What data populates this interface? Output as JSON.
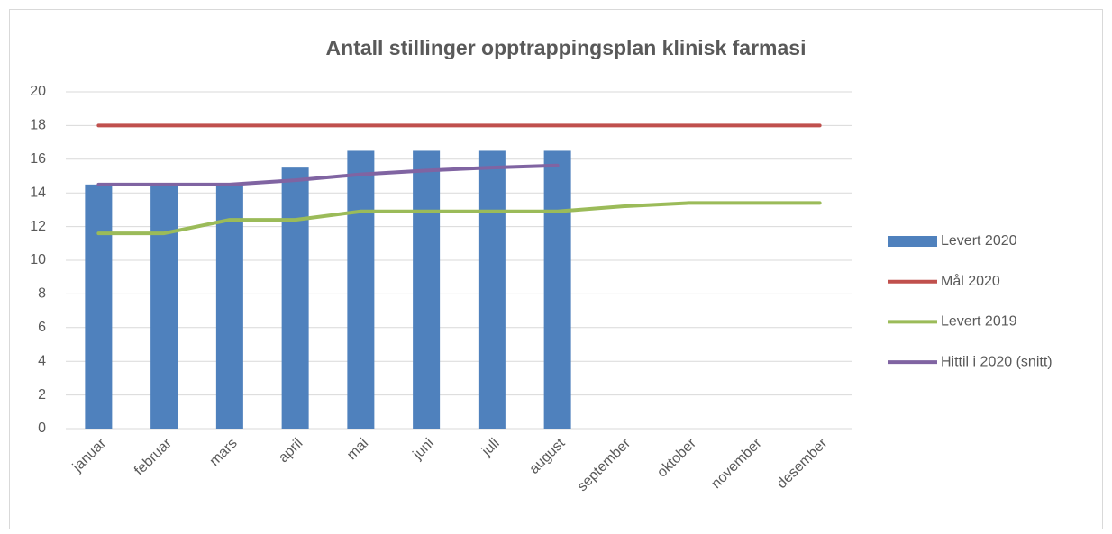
{
  "chart_data": {
    "type": "bar",
    "title": "Antall stillinger opptrappingsplan klinisk farmasi",
    "categories": [
      "januar",
      "februar",
      "mars",
      "april",
      "mai",
      "juni",
      "juli",
      "august",
      "september",
      "oktober",
      "november",
      "desember"
    ],
    "series": [
      {
        "name": "Levert 2020",
        "type": "bar",
        "color": "#4f81bd",
        "values": [
          14.5,
          14.5,
          14.5,
          15.5,
          16.5,
          16.5,
          16.5,
          16.5,
          null,
          null,
          null,
          null
        ]
      },
      {
        "name": "Mål 2020",
        "type": "line",
        "color": "#c0504d",
        "values": [
          18,
          18,
          18,
          18,
          18,
          18,
          18,
          18,
          18,
          18,
          18,
          18
        ]
      },
      {
        "name": "Levert 2019",
        "type": "line",
        "color": "#9bbb59",
        "values": [
          11.6,
          11.6,
          12.4,
          12.4,
          12.9,
          12.9,
          12.9,
          12.9,
          13.2,
          13.4,
          13.4,
          13.4
        ]
      },
      {
        "name": "Hittil i 2020 (snitt)",
        "type": "line",
        "color": "#8064a2",
        "values": [
          14.5,
          14.5,
          14.5,
          14.75,
          15.1,
          15.33,
          15.5,
          15.63,
          null,
          null,
          null,
          null
        ]
      }
    ],
    "ylim": [
      0,
      20
    ],
    "yticks": [
      0,
      2,
      4,
      6,
      8,
      10,
      12,
      14,
      16,
      18,
      20
    ],
    "grid": true,
    "legend": "right"
  }
}
